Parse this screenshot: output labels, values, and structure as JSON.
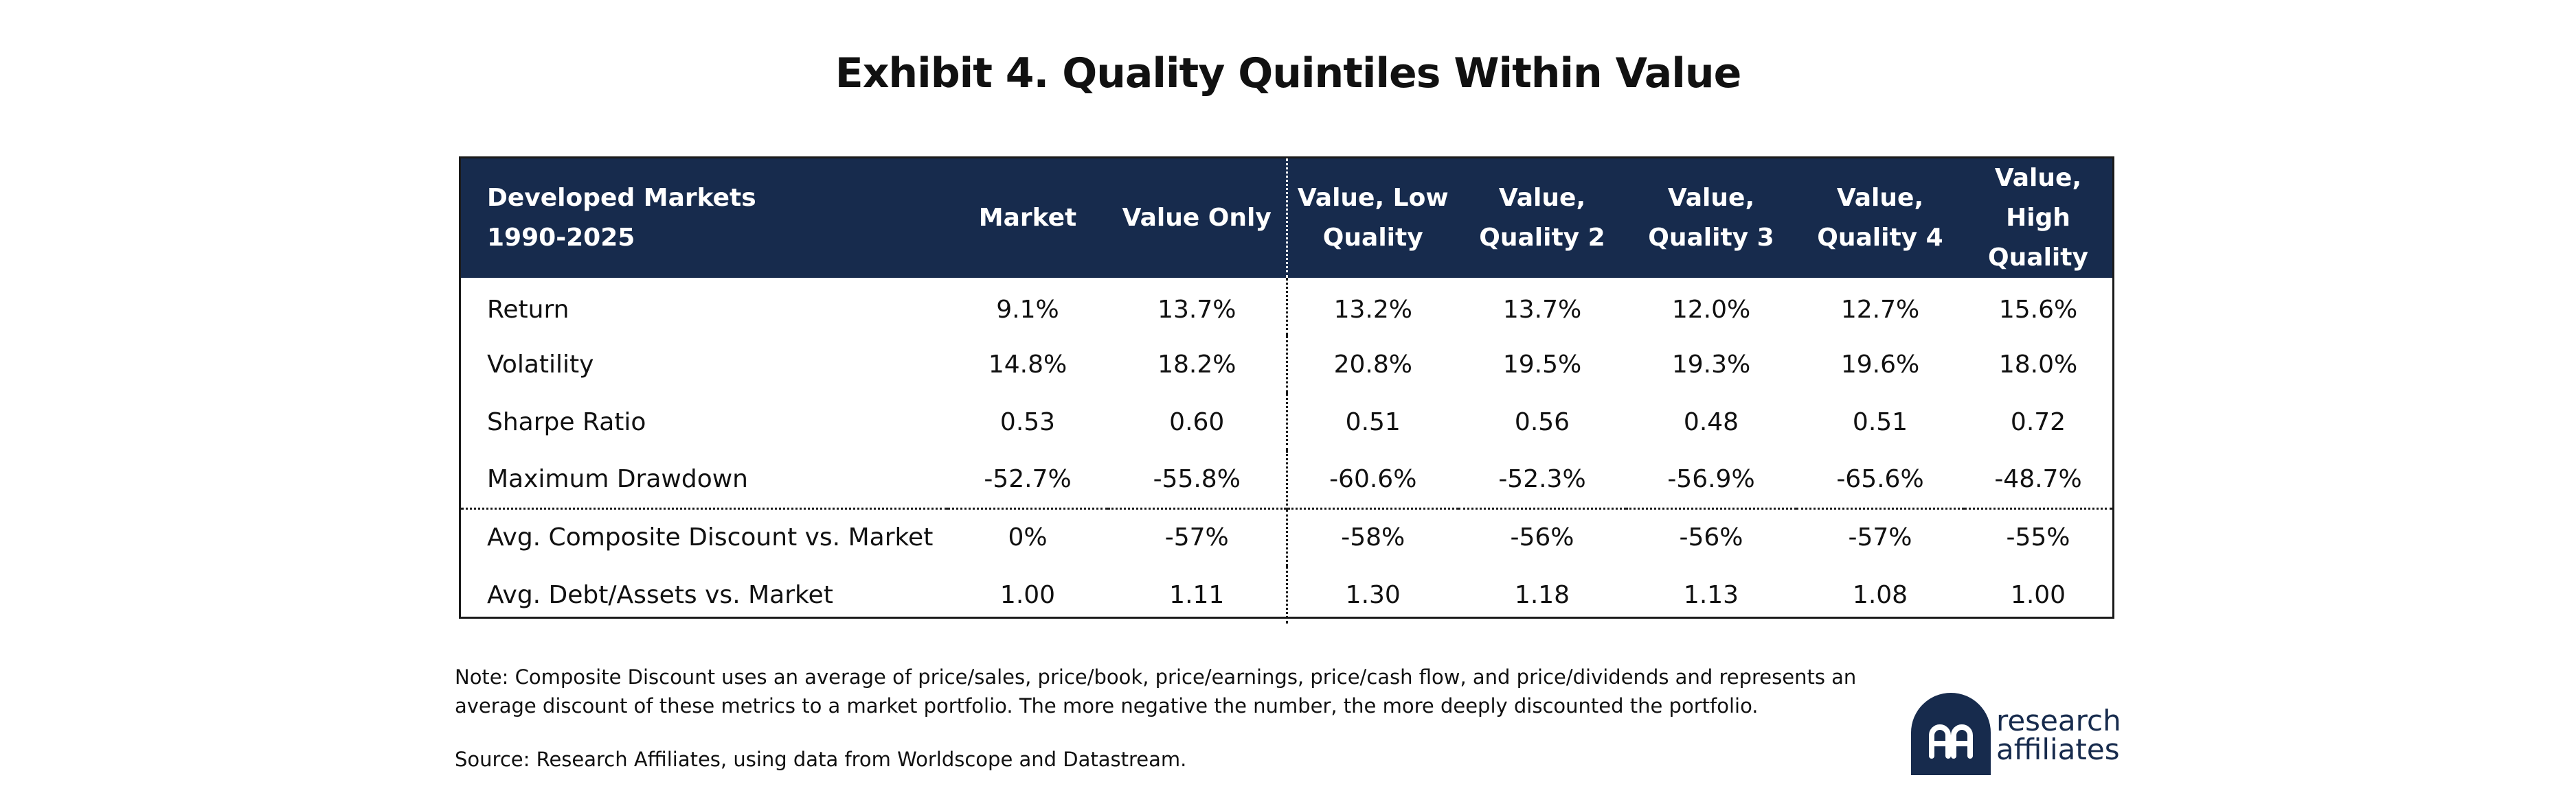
{
  "title": "Exhibit 4. Quality Quintiles Within Value",
  "table": {
    "header": {
      "corner": "Developed Markets\n1990-2025",
      "columns": [
        "Market",
        "Value Only",
        "Value, Low\nQuality",
        "Value,\nQuality 2",
        "Value,\nQuality 3",
        "Value,\nQuality 4",
        "Value,\nHigh Quality"
      ]
    },
    "rows": [
      {
        "label": "Return",
        "values": [
          "9.1%",
          "13.7%",
          "13.2%",
          "13.7%",
          "12.0%",
          "12.7%",
          "15.6%"
        ]
      },
      {
        "label": "Volatility",
        "values": [
          "14.8%",
          "18.2%",
          "20.8%",
          "19.5%",
          "19.3%",
          "19.6%",
          "18.0%"
        ]
      },
      {
        "label": "Sharpe Ratio",
        "values": [
          "0.53",
          "0.60",
          "0.51",
          "0.56",
          "0.48",
          "0.51",
          "0.72"
        ]
      },
      {
        "label": "Maximum Drawdown",
        "values": [
          "-52.7%",
          "-55.8%",
          "-60.6%",
          "-52.3%",
          "-56.9%",
          "-65.6%",
          "-48.7%"
        ]
      },
      {
        "label": "Avg. Composite Discount vs. Market",
        "values": [
          "0%",
          "-57%",
          "-58%",
          "-56%",
          "-56%",
          "-57%",
          "-55%"
        ]
      },
      {
        "label": "Avg. Debt/Assets vs. Market",
        "values": [
          "1.00",
          "1.11",
          "1.30",
          "1.18",
          "1.13",
          "1.08",
          "1.00"
        ]
      }
    ]
  },
  "note": "Note: Composite Discount uses an average of price/sales, price/book, price/earnings, price/cash flow, and price/dividends and represents an average discount of these metrics to a market portfolio. The more negative the number, the more deeply discounted the portfolio.",
  "source": "Source: Research Affiliates, using data from Worldscope and Datastream.",
  "logo": {
    "text": "research\naffiliates",
    "registered_mark": "®",
    "icon": "research-affiliates-logo-icon",
    "brand_color": "#172b4d"
  },
  "colors": {
    "header_background": "#172b4d",
    "header_text": "#ffffff",
    "body_text": "#111111"
  }
}
